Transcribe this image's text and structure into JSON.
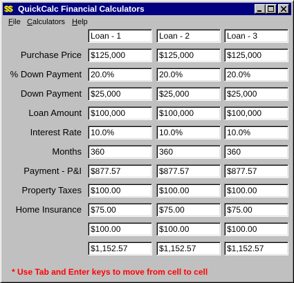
{
  "window": {
    "title": "QuickCalc Financial Calculators",
    "app_icon_text": "$$",
    "controls": [
      "minimize-icon",
      "maximize-icon",
      "close-icon"
    ]
  },
  "menu": {
    "file": {
      "accel": "F",
      "rest": "ile"
    },
    "calculators": {
      "accel": "C",
      "rest": "alculators"
    },
    "help": {
      "accel": "H",
      "rest": "elp"
    }
  },
  "table": {
    "columns": [
      "Loan - 1",
      "Loan - 2",
      "Loan - 3"
    ],
    "rows": [
      {
        "label": "Purchase Price",
        "values": [
          "$125,000",
          "$125,000",
          "$125,000"
        ]
      },
      {
        "label": "% Down Payment",
        "values": [
          "20.0%",
          "20.0%",
          "20.0%"
        ]
      },
      {
        "label": "Down Payment",
        "values": [
          "$25,000",
          "$25,000",
          "$25,000"
        ]
      },
      {
        "label": "Loan Amount",
        "values": [
          "$100,000",
          "$100,000",
          "$100,000"
        ]
      },
      {
        "label": "Interest Rate",
        "values": [
          "10.0%",
          "10.0%",
          "10.0%"
        ]
      },
      {
        "label": "Months",
        "values": [
          "360",
          "360",
          "360"
        ]
      },
      {
        "label": "Payment - P&I",
        "values": [
          "$877.57",
          "$877.57",
          "$877.57"
        ]
      },
      {
        "label": "Property Taxes",
        "values": [
          "$100.00",
          "$100.00",
          "$100.00"
        ]
      },
      {
        "label": "Home Insurance",
        "values": [
          "$75.00",
          "$75.00",
          "$75.00"
        ]
      },
      {
        "label": "",
        "values": [
          "$100.00",
          "$100.00",
          "$100.00"
        ]
      },
      {
        "label": "",
        "values": [
          "$1,152.57",
          "$1,152.57",
          "$1,152.57"
        ]
      }
    ]
  },
  "footer": {
    "note": "* Use Tab and Enter keys to move from cell to cell"
  },
  "colors": {
    "title_bar": "#000080",
    "window_face": "#c0c0c0",
    "note_text": "#ff0000",
    "icon_text": "#ffff00"
  }
}
